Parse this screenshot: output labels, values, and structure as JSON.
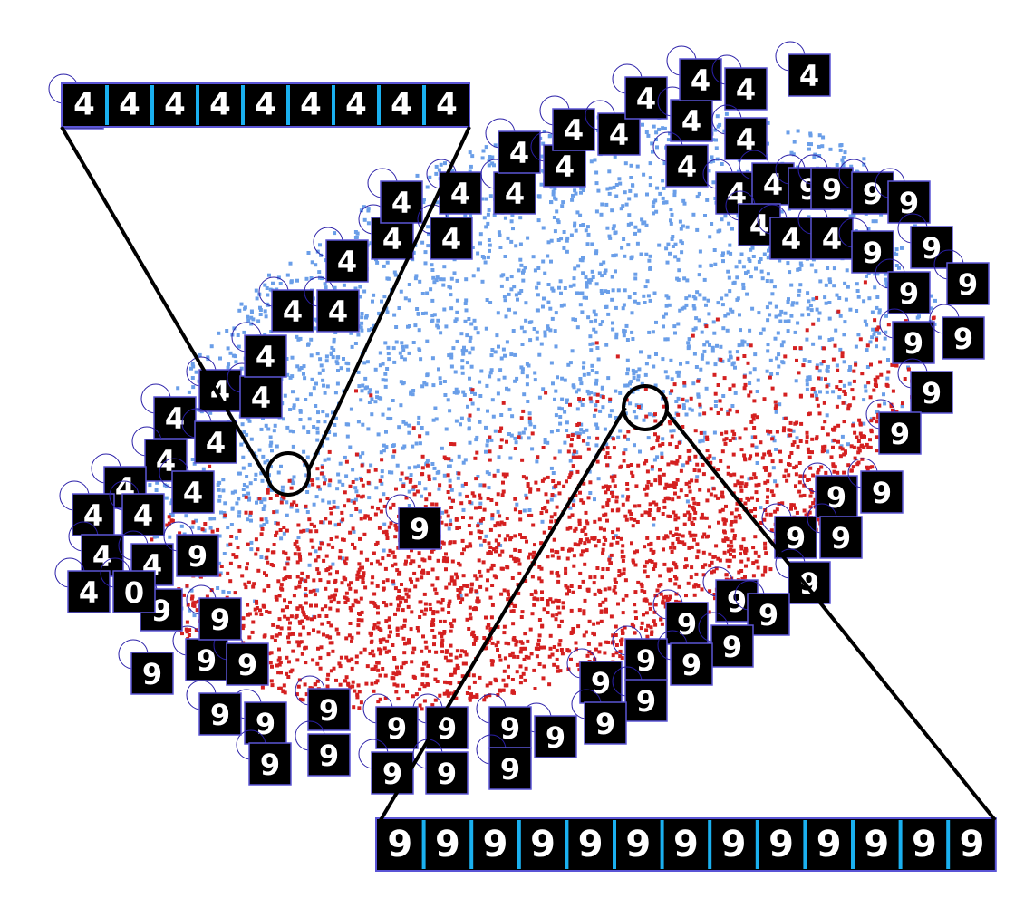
{
  "chart_data": {
    "type": "scatter",
    "title": "",
    "xlabel": "",
    "ylabel": "",
    "grid": false,
    "legend": "none",
    "series": [
      {
        "class_digit": "4",
        "color": "#6a9ee8",
        "approx_point_count": 6000
      },
      {
        "class_digit": "9",
        "color": "#d42020",
        "approx_point_count": 6000
      }
    ],
    "thumbnail_marker_color": "#2a1fa8",
    "thumbnail_border_color": "#5b55d6",
    "connector_color": "#000000",
    "strip_separator_color": "#1ab0f0"
  },
  "thumbnails": [
    "4",
    "4",
    "4",
    "4",
    "4",
    "4",
    "4",
    "4",
    "4",
    "4",
    "4",
    "4",
    "4",
    "4",
    "4",
    "4",
    "4",
    "4",
    "4",
    "4",
    "4",
    "4",
    "4",
    "4",
    "4",
    "4",
    "4",
    "4",
    "4",
    "4",
    "4",
    "4",
    "4",
    "4",
    "4",
    "4",
    "4",
    "4",
    "9",
    "9",
    "9",
    "9",
    "9",
    "9",
    "9",
    "9",
    "9",
    "9",
    "9",
    "9",
    "9",
    "9",
    "9",
    "9",
    "9",
    "9",
    "9",
    "9",
    "9",
    "9",
    "9",
    "9",
    "9",
    "9",
    "9",
    "9",
    "9",
    "9",
    "9",
    "9",
    "9",
    "9",
    "9",
    "9",
    "9",
    "9",
    "9",
    "9",
    "9",
    "9",
    "9",
    "9",
    "0",
    "9",
    "9",
    "9"
  ],
  "zoom_strips": {
    "top": {
      "label": "4",
      "digits": [
        "4",
        "4",
        "4",
        "4",
        "4",
        "4",
        "4",
        "4",
        "4"
      ]
    },
    "bottom": {
      "label": "9",
      "digits": [
        "9",
        "9",
        "9",
        "9",
        "9",
        "9",
        "9",
        "9",
        "9",
        "9",
        "9",
        "9",
        "9"
      ]
    }
  }
}
